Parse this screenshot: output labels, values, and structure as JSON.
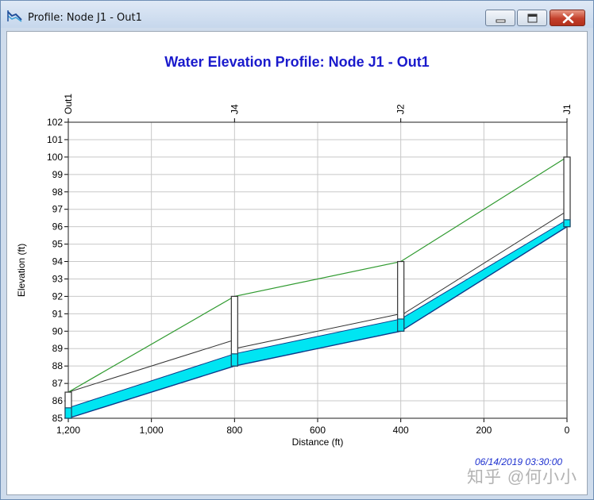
{
  "window": {
    "title": "Profile: Node J1 - Out1",
    "icon": "profile-app-icon",
    "buttons": [
      "minimize",
      "maximize",
      "close"
    ]
  },
  "chart_data": {
    "type": "profile",
    "title": "Water Elevation Profile: Node J1 - Out1",
    "xlabel": "Distance (ft)",
    "ylabel": "Elevation (ft)",
    "xlim": [
      1200,
      0
    ],
    "ylim": [
      85,
      102
    ],
    "x_ticks": [
      {
        "value": 1200,
        "label": "1,200"
      },
      {
        "value": 1000,
        "label": "1,000"
      },
      {
        "value": 800,
        "label": "800"
      },
      {
        "value": 600,
        "label": "600"
      },
      {
        "value": 400,
        "label": "400"
      },
      {
        "value": 200,
        "label": "200"
      },
      {
        "value": 0,
        "label": "0"
      }
    ],
    "y_ticks": [
      85,
      86,
      87,
      88,
      89,
      90,
      91,
      92,
      93,
      94,
      95,
      96,
      97,
      98,
      99,
      100,
      101,
      102
    ],
    "grid": true,
    "nodes": [
      {
        "name": "Out1",
        "distance": 1200,
        "invert": 85.0,
        "rim": 86.5,
        "water": 85.6
      },
      {
        "name": "J4",
        "distance": 800,
        "invert": 88.0,
        "rim": 92.0,
        "water": 88.7
      },
      {
        "name": "J2",
        "distance": 400,
        "invert": 90.0,
        "rim": 94.0,
        "water": 90.7
      },
      {
        "name": "J1",
        "distance": 0,
        "invert": 96.0,
        "rim": 100.0,
        "water": 96.4
      }
    ],
    "links": [
      {
        "from": "J1",
        "to": "J2",
        "up_invert": 96.0,
        "up_crown": 96.9,
        "down_invert": 90.0,
        "down_crown": 90.9,
        "up_water": 96.4,
        "down_water": 90.7
      },
      {
        "from": "J2",
        "to": "J4",
        "up_invert": 90.0,
        "up_crown": 91.0,
        "down_invert": 88.0,
        "down_crown": 89.0,
        "up_water": 90.7,
        "down_water": 88.7
      },
      {
        "from": "J4",
        "to": "Out1",
        "up_invert": 88.0,
        "up_crown": 89.5,
        "down_invert": 85.0,
        "down_crown": 86.5,
        "up_water": 88.7,
        "down_water": 85.6
      }
    ],
    "colors": {
      "water": "#00e5f2",
      "ground": "#2f9a2f",
      "conduit": "#333333",
      "grid": "#c8c8c8"
    }
  },
  "timestamp": "06/14/2019 03:30:00",
  "watermark": "知乎 @何小小"
}
